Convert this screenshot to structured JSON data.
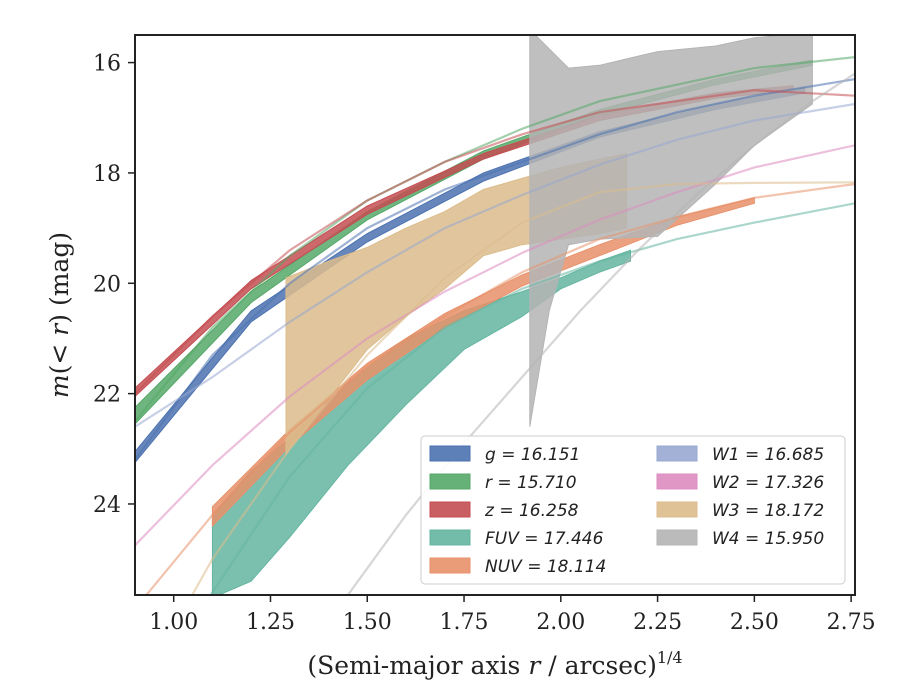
{
  "chart_data": {
    "type": "line",
    "xlabel": "(Semi-major axis r / arcsec)^{1/4}",
    "ylabel": "m(< r) (mag)",
    "xlim": [
      0.9,
      2.76
    ],
    "ylim": [
      25.65,
      15.5
    ],
    "y_inverted": true,
    "xticks": [
      "1.00",
      "1.25",
      "1.50",
      "1.75",
      "2.00",
      "2.25",
      "2.50",
      "2.75"
    ],
    "yticks": [
      "16",
      "18",
      "20",
      "22",
      "24"
    ],
    "grid": false,
    "legend_position": "lower-right",
    "series": [
      {
        "name": "g = 16.151",
        "color": "#4c72b0",
        "x_faint": [
          0.9,
          1.1,
          1.3,
          1.5,
          1.7,
          1.9,
          2.1,
          2.3,
          2.5,
          2.76
        ],
        "y_faint": [
          23.2,
          21.3,
          20.0,
          19.0,
          18.3,
          17.8,
          17.3,
          16.9,
          16.6,
          16.3
        ],
        "band": {
          "x": [
            0.9,
            1.2,
            1.5,
            1.8,
            2.1,
            2.4,
            2.63
          ],
          "y_low": [
            23.25,
            20.7,
            19.25,
            18.15,
            17.35,
            16.85,
            16.55
          ],
          "y_high": [
            23.05,
            20.5,
            19.1,
            18.0,
            17.25,
            16.75,
            16.45
          ]
        }
      },
      {
        "name": "r = 15.710",
        "color": "#55a868",
        "x_faint": [
          0.9,
          1.1,
          1.3,
          1.5,
          1.7,
          1.9,
          2.1,
          2.3,
          2.5,
          2.76
        ],
        "y_faint": [
          22.5,
          20.8,
          19.5,
          18.5,
          17.8,
          17.2,
          16.7,
          16.4,
          16.1,
          15.9
        ],
        "band": {
          "x": [
            0.9,
            1.2,
            1.5,
            1.8,
            2.1,
            2.4,
            2.65
          ],
          "y_low": [
            22.55,
            20.35,
            18.85,
            17.75,
            16.95,
            16.4,
            16.05
          ],
          "y_high": [
            22.25,
            20.15,
            18.7,
            17.6,
            16.85,
            16.3,
            15.95
          ]
        }
      },
      {
        "name": "z = 16.258",
        "color": "#c44e52",
        "x_faint": [
          0.9,
          1.1,
          1.3,
          1.5,
          1.7,
          1.9,
          2.1,
          2.3,
          2.5,
          2.76
        ],
        "y_faint": [
          22.0,
          20.6,
          19.4,
          18.5,
          17.8,
          17.3,
          16.9,
          16.7,
          16.5,
          16.6
        ],
        "band": {
          "x": [
            0.9,
            1.2,
            1.5,
            1.8,
            2.1,
            2.4,
            2.6
          ],
          "y_low": [
            22.05,
            20.1,
            18.75,
            17.75,
            17.05,
            16.65,
            16.5
          ],
          "y_high": [
            21.9,
            19.95,
            18.6,
            17.65,
            16.95,
            16.55,
            16.42
          ]
        }
      },
      {
        "name": "FUV = 17.446",
        "color": "#64b5a0",
        "x_faint": [
          0.9,
          1.1,
          1.3,
          1.5,
          1.7,
          1.9,
          2.1,
          2.3,
          2.5,
          2.76
        ],
        "y_faint": [
          28.0,
          25.6,
          23.5,
          21.9,
          20.8,
          20.1,
          19.6,
          19.2,
          18.9,
          18.55
        ],
        "band": {
          "x": [
            1.1,
            1.2,
            1.3,
            1.45,
            1.6,
            1.75,
            1.9,
            2.0,
            2.1,
            2.18
          ],
          "y_low": [
            25.7,
            25.4,
            24.6,
            23.3,
            22.2,
            21.2,
            20.6,
            20.1,
            19.8,
            19.6
          ],
          "y_high": [
            24.2,
            23.4,
            22.8,
            21.8,
            21.0,
            20.5,
            20.15,
            19.9,
            19.6,
            19.4
          ]
        }
      },
      {
        "name": "NUV = 18.114",
        "color": "#e8916a",
        "x_faint": [
          0.9,
          1.1,
          1.3,
          1.5,
          1.7,
          1.9,
          2.1,
          2.3,
          2.5,
          2.76
        ],
        "y_faint": [
          25.9,
          24.2,
          22.7,
          21.5,
          20.6,
          19.8,
          19.2,
          18.8,
          18.45,
          18.2
        ],
        "band": {
          "x": [
            1.1,
            1.3,
            1.5,
            1.7,
            1.9,
            2.1,
            2.3,
            2.5
          ],
          "y_low": [
            24.4,
            22.95,
            21.75,
            20.8,
            20.05,
            19.5,
            18.95,
            18.55
          ],
          "y_high": [
            24.05,
            22.65,
            21.45,
            20.55,
            19.85,
            19.3,
            18.8,
            18.45
          ]
        }
      },
      {
        "name": "W1 = 16.685",
        "color": "#98a8d0",
        "x_faint": [
          0.9,
          1.1,
          1.3,
          1.5,
          1.7,
          1.9,
          2.1,
          2.3,
          2.5,
          2.76
        ],
        "y_faint": [
          22.6,
          21.7,
          20.7,
          19.8,
          19.0,
          18.4,
          17.85,
          17.4,
          17.05,
          16.75
        ]
      },
      {
        "name": "W2 = 17.326",
        "color": "#dd8cc0",
        "x_faint": [
          0.9,
          1.1,
          1.3,
          1.5,
          1.7,
          1.9,
          2.1,
          2.3,
          2.5,
          2.76
        ],
        "y_faint": [
          24.75,
          23.3,
          22.05,
          21.0,
          20.15,
          19.45,
          18.85,
          18.35,
          17.9,
          17.5
        ]
      },
      {
        "name": "W3 = 18.172",
        "color": "#dcbc8c",
        "x_faint": [
          0.9,
          1.1,
          1.3,
          1.5,
          1.7,
          1.9,
          2.1,
          2.3,
          2.5,
          2.76
        ],
        "y_faint": [
          27.5,
          25.0,
          23.0,
          21.3,
          19.9,
          18.9,
          18.35,
          18.2,
          18.18,
          18.17
        ],
        "band": {
          "x": [
            1.29,
            1.4,
            1.5,
            1.6,
            1.7,
            1.8,
            1.9,
            2.0,
            2.1,
            2.17
          ],
          "y_low": [
            23.1,
            22.1,
            21.2,
            20.6,
            20.1,
            19.5,
            19.3,
            19.2,
            19.1,
            19.0
          ],
          "y_high": [
            19.9,
            19.6,
            19.35,
            19.0,
            18.7,
            18.3,
            18.1,
            17.9,
            17.75,
            17.65
          ]
        }
      },
      {
        "name": "W4 = 15.950",
        "color": "#b4b4b4",
        "x_faint": [
          1.45,
          1.6,
          1.75,
          1.9,
          2.05,
          2.2,
          2.35,
          2.5,
          2.65,
          2.76
        ],
        "y_faint": [
          25.65,
          24.2,
          22.9,
          21.7,
          20.5,
          19.4,
          18.4,
          17.5,
          16.7,
          16.2
        ],
        "band": {
          "x": [
            1.92,
            1.97,
            2.02,
            2.1,
            2.25,
            2.4,
            2.5,
            2.65
          ],
          "y_low": [
            22.6,
            20.5,
            19.3,
            19.2,
            19.15,
            18.2,
            17.5,
            16.75
          ],
          "y_high": [
            15.4,
            15.75,
            16.1,
            16.05,
            15.8,
            15.7,
            15.55,
            15.45
          ]
        }
      }
    ]
  }
}
